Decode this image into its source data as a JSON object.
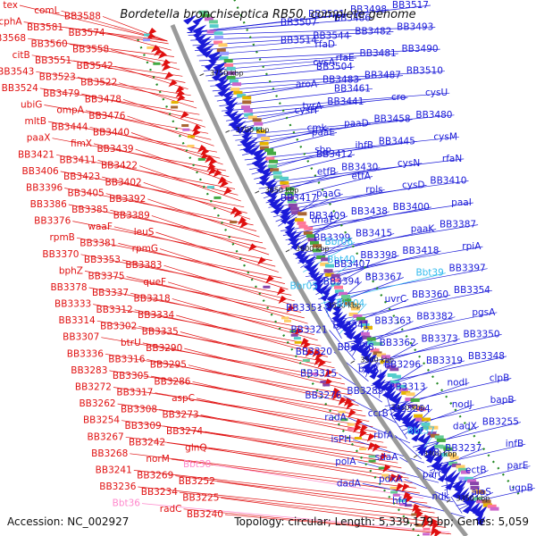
{
  "title": "Bordetella bronchiseptica RB50, complete genome",
  "footer": {
    "accession": "Accession: NC_002927",
    "info": "Topology: circular; Length: 5,339,179 bp; Genes: 5,059"
  },
  "colors": {
    "forward": "#1a1ad8",
    "reverse": "#e01010",
    "rna": "#33bbee",
    "trna_rev": "#ff88cc",
    "backbone": "#9a9a9a",
    "dots": "#228822"
  },
  "ticks": [
    {
      "label": "3750 kbp"
    },
    {
      "label": "3700 kbp"
    },
    {
      "label": "3650 kbp"
    },
    {
      "label": "3600 kbp"
    },
    {
      "label": "3550 kbp"
    },
    {
      "label": "3500 kbp"
    },
    {
      "label": "3450 kbp"
    },
    {
      "label": "3400 kbp"
    },
    {
      "label": "3350 kbp"
    }
  ],
  "left_labels": [
    "tex",
    "comL",
    "BB3588",
    "cphA",
    "BB3581",
    "BB3574",
    "BB3568",
    "BB3560",
    "BB3558",
    "citB",
    "BB3551",
    "BB3542",
    "BB3543",
    "BB3523",
    "BB3522",
    "BB3524",
    "BB3479",
    "BB3478",
    "ubiG",
    "ompA",
    "BB3476",
    "mltB",
    "BB3444",
    "BB3440",
    "paaX",
    "fimX",
    "BB3439",
    "BB3421",
    "BB3411",
    "BB3422",
    "BB3406",
    "BB3423",
    "BB3402",
    "BB3396",
    "BB3405",
    "BB3392",
    "BB3386",
    "BB3385",
    "BB3389",
    "BB3376",
    "waaF",
    "leuS",
    "rpmB",
    "BB3381",
    "rpmG",
    "BB3370",
    "BB3353",
    "BB3383",
    "bphZ",
    "BB3375",
    "queF",
    "BB3378",
    "BB3337",
    "BB3318",
    "BB3333",
    "BB3312",
    "BB3334",
    "BB3314",
    "BB3302",
    "BB3335",
    "BB3307",
    "btrU",
    "BB3290",
    "BB3336",
    "BB3316",
    "BB3295",
    "BB3283",
    "BB3305",
    "BB3286",
    "BB3272",
    "BB3317",
    "aspC",
    "BB3262",
    "BB3308",
    "BB3273",
    "BB3254",
    "BB3309",
    "BB3274",
    "BB3267",
    "BB3242",
    "glnQ",
    "BB3268",
    "norM",
    "Bbt38",
    "BB3241",
    "BB3269",
    "BB3252",
    "BB3236",
    "BB3234",
    "BB3225",
    "Bbt36",
    "radC",
    "BB3240"
  ],
  "right_labels": [
    "BB3517",
    "BB3498",
    "BB3501",
    "BB3486",
    "BB3507",
    "BB3493",
    "BB3482",
    "BB3544",
    "BB3514",
    "rfaD",
    "BB3490",
    "BB3481",
    "rfaE",
    "cysA",
    "BB3504",
    "BB3510",
    "BB3487",
    "BB3483",
    "aroA",
    "BB3461",
    "cysU",
    "cro",
    "BB3441",
    "tyrA",
    "cysH",
    "BB3480",
    "BB3458",
    "paaD",
    "cmk",
    "paaE",
    "cysM",
    "BB3445",
    "ihfB",
    "sbp",
    "BB3412",
    "rfaN",
    "cysN",
    "BB3430",
    "etfB",
    "etfA",
    "BB3410",
    "cysD",
    "rpls",
    "paaG",
    "BB3417",
    "paaI",
    "BB3400",
    "BB3438",
    "BB3409",
    "dnaE",
    "BB3387",
    "paaK",
    "BB3415",
    "BB3399",
    "Bbr06",
    "rpiA",
    "BB3418",
    "BB3398",
    "Bbt40",
    "BB3407",
    "BB3397",
    "Bbt39",
    "BB3367",
    "BB3394",
    "Bbr05",
    "BB3354",
    "BB3360",
    "uvrC",
    "Bbr04",
    "BB3351",
    "pgsA",
    "BB3382",
    "BB3363",
    "BB3341",
    "BB3321",
    "BB3350",
    "BB3373",
    "BB3362",
    "BB3338",
    "BB3320",
    "BB3348",
    "BB3319",
    "BB3296",
    "bioA",
    "BB3315",
    "clpB",
    "nodI",
    "BB3313",
    "BB3289",
    "BB3276",
    "bapB",
    "nodJ",
    "BB3264",
    "ccrB",
    "radA",
    "BB3255",
    "dadX",
    "Bbt37",
    "rbfA",
    "isPH",
    "infB",
    "BB3237",
    "truB",
    "sdaA",
    "polA",
    "parE",
    "ectB",
    "parC",
    "pdxA",
    "dadA",
    "ugpB",
    "alaS",
    "ndk",
    "hfq"
  ]
}
